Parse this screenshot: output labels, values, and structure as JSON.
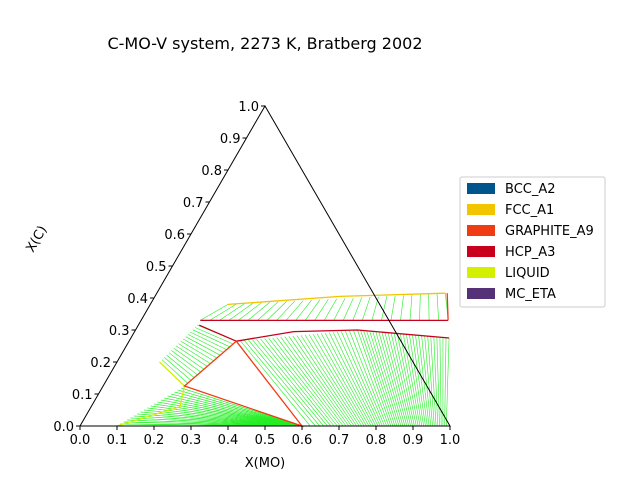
{
  "chart_data": {
    "type": "ternary_phase_diagram",
    "title": "C-MO-V system, 2273 K, Bratberg 2002",
    "xlabel": "X(MO)",
    "ylabel": "X(C)",
    "xlim": [
      0,
      1
    ],
    "ylim": [
      0,
      1
    ],
    "xticks": [
      "0.0",
      "0.1",
      "0.2",
      "0.3",
      "0.4",
      "0.5",
      "0.6",
      "0.7",
      "0.8",
      "0.9",
      "1.0"
    ],
    "yticks": [
      "0.0",
      "0.1",
      "0.2",
      "0.3",
      "0.4",
      "0.5",
      "0.6",
      "0.7",
      "0.8",
      "0.9",
      "1.0"
    ],
    "legend_position": "right",
    "legend": [
      {
        "name": "BCC_A2",
        "color": "#00558c"
      },
      {
        "name": "FCC_A1",
        "color": "#f2c500"
      },
      {
        "name": "GRAPHITE_A9",
        "color": "#f03c14"
      },
      {
        "name": "HCP_A3",
        "color": "#c8001e"
      },
      {
        "name": "LIQUID",
        "color": "#d2f000"
      },
      {
        "name": "MC_ETA",
        "color": "#553278"
      }
    ],
    "phase_boundaries": [
      {
        "name": "fcc-upper",
        "color": "#f2c500",
        "points": [
          [
            0.21,
            0.38
          ],
          [
            0.5,
            0.405
          ],
          [
            0.78,
            0.415
          ]
        ]
      },
      {
        "name": "fcc-lower",
        "color": "#c8001e",
        "points": [
          [
            0.16,
            0.33
          ],
          [
            0.5,
            0.33
          ],
          [
            0.83,
            0.33
          ]
        ]
      },
      {
        "name": "graphite-edge",
        "color": "#f03c14",
        "points": [
          [
            0.785,
            0.415
          ],
          [
            0.83,
            0.33
          ]
        ]
      },
      {
        "name": "hcp-dome",
        "color": "#c8001e",
        "points": [
          [
            0.29,
            0.265
          ],
          [
            0.43,
            0.295
          ],
          [
            0.6,
            0.3
          ],
          [
            0.86,
            0.275
          ]
        ]
      },
      {
        "name": "hcp-left",
        "color": "#c8001e",
        "points": [
          [
            0.165,
            0.315
          ],
          [
            0.29,
            0.265
          ]
        ]
      },
      {
        "name": "liquid-left",
        "color": "#d2f000",
        "points": [
          [
            0.115,
            0.2
          ],
          [
            0.22,
            0.125
          ],
          [
            0.24,
            0.06
          ],
          [
            0.1,
            0.0
          ]
        ]
      },
      {
        "name": "three-phase",
        "color": "#f03c14",
        "points": [
          [
            0.29,
            0.265
          ],
          [
            0.22,
            0.125
          ],
          [
            0.6,
            0.0
          ],
          [
            0.29,
            0.265
          ]
        ]
      }
    ],
    "tie_line_color": "#22ee22"
  }
}
